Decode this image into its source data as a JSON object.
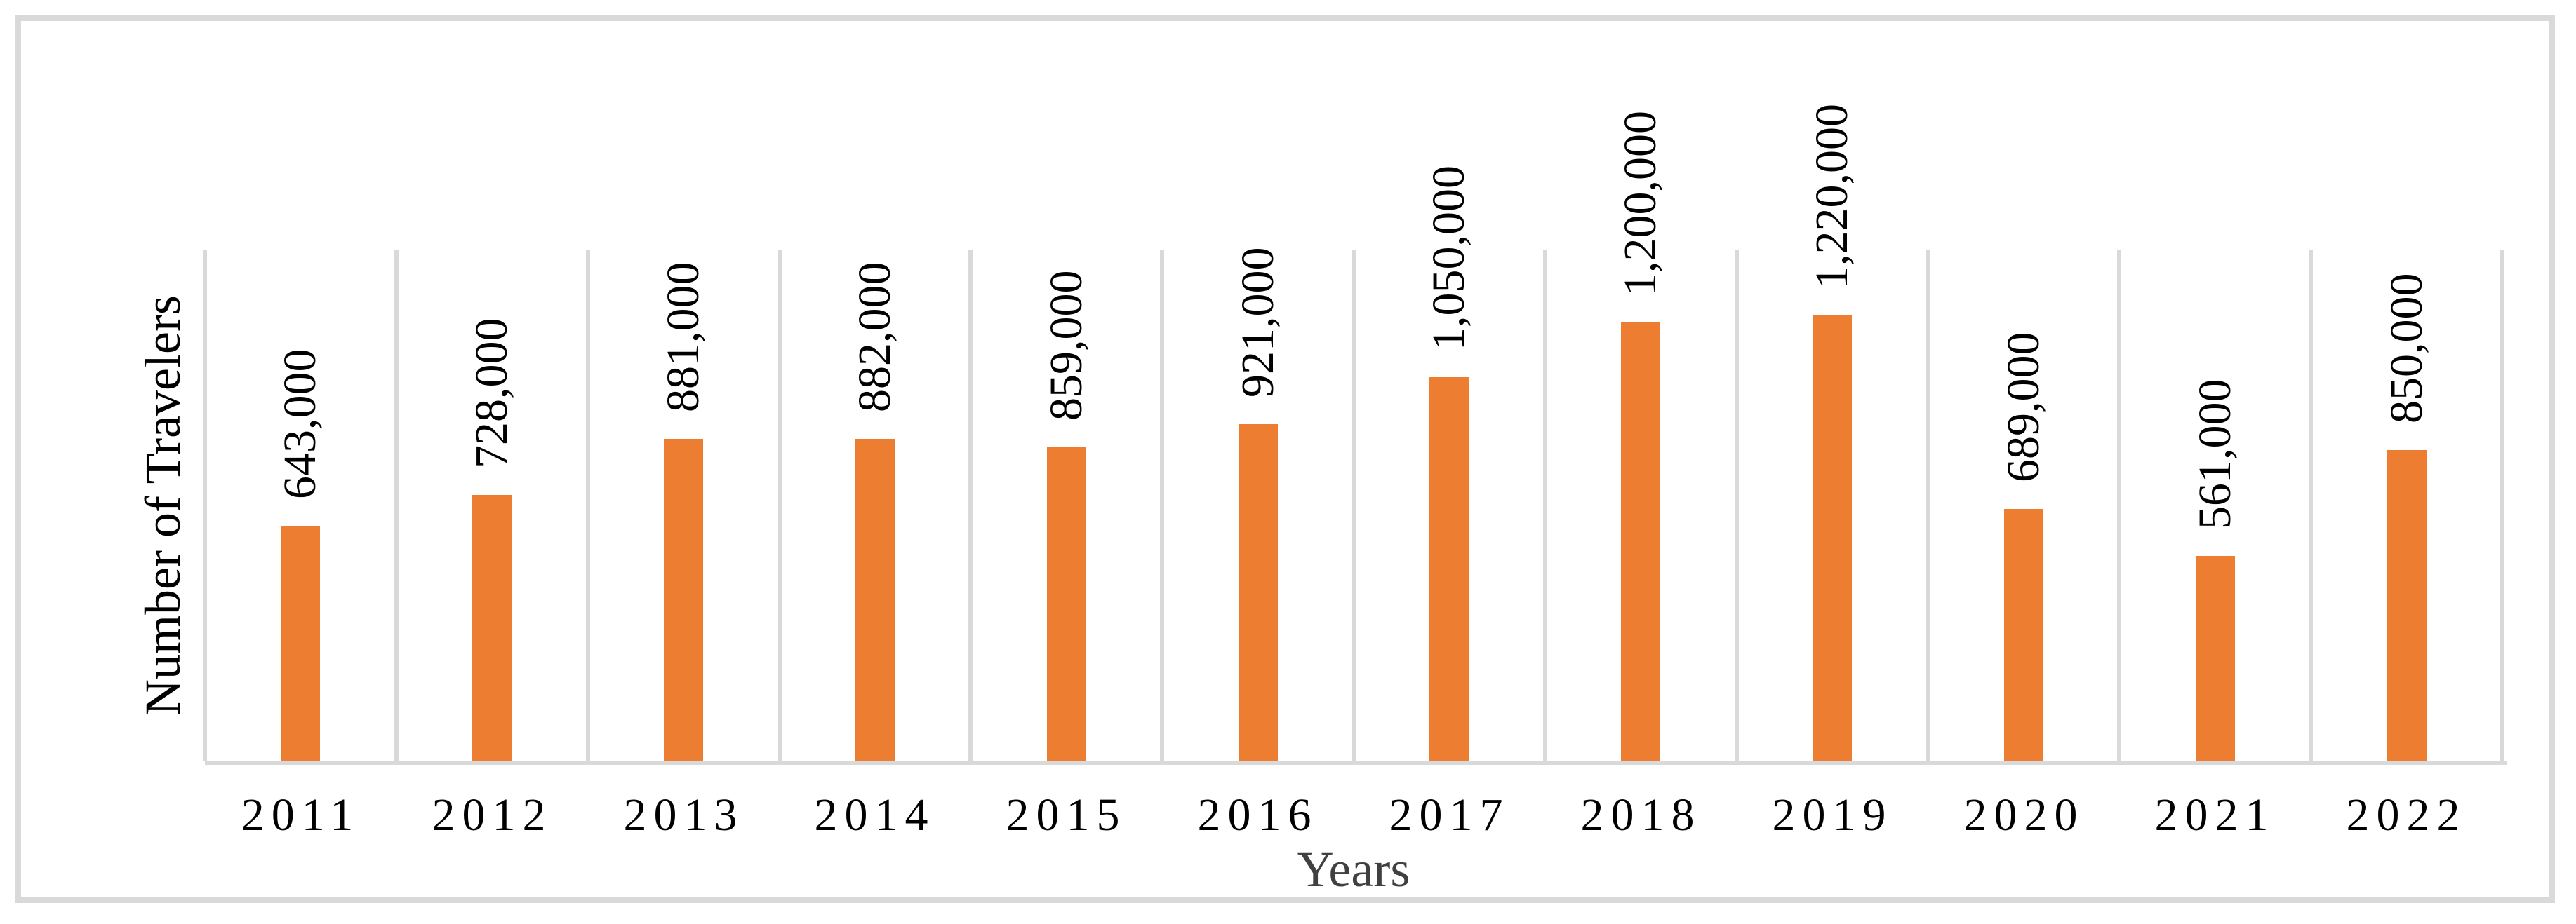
{
  "chart_data": {
    "type": "bar",
    "title": "",
    "xlabel": "Years",
    "ylabel": "Number of Travelers",
    "categories": [
      "2011",
      "2012",
      "2013",
      "2014",
      "2015",
      "2016",
      "2017",
      "2018",
      "2019",
      "2020",
      "2021",
      "2022"
    ],
    "values": [
      643000,
      728000,
      881000,
      882000,
      859000,
      921000,
      1050000,
      1200000,
      1220000,
      689000,
      561000,
      850000
    ],
    "value_labels": [
      "643,000",
      "728,000",
      "881,000",
      "882,000",
      "859,000",
      "921,000",
      "1,050,000",
      "1,200,000",
      "1,220,000",
      "689,000",
      "561,000",
      "850,000"
    ],
    "ylim": [
      0,
      1400000
    ],
    "y_axis_ticks_visible": false,
    "grid": "vertical-category-separators",
    "legend": null,
    "value_label_rotation_degrees": -90,
    "colors": {
      "bar": "#ED7D31",
      "gridline": "#D9D9D9",
      "frame": "#D9D9D9",
      "axis_line": "#D9D9D9",
      "value_label_text": "#000000",
      "tick_label_text": "#000000",
      "xlabel_text": "#404040",
      "ylabel_text": "#000000",
      "background": "#FFFFFF"
    }
  }
}
